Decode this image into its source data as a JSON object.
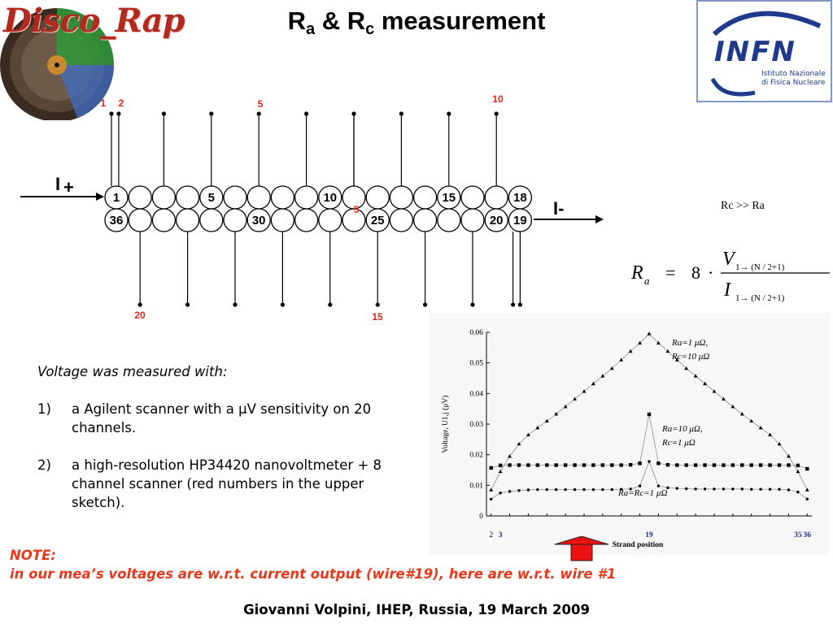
{
  "title": {
    "main": "R",
    "sub_a": "a",
    "amp": " & R",
    "sub_c": "c",
    "rest": " measurement"
  },
  "logos": {
    "disco_rap": "Disco_Rap",
    "infn": "INFN",
    "infn_line1": "Istituto Nazionale",
    "infn_line2": "di Fisica Nucleare"
  },
  "sketch": {
    "top_wire_labels": [
      "1",
      "2",
      "5",
      "10"
    ],
    "bottom_wire_labels": [
      "20",
      "15"
    ],
    "inner_wire_label": "5",
    "top_row_labels": [
      "1",
      "5",
      "10",
      "15",
      "18"
    ],
    "bottom_row_labels": [
      "36",
      "30",
      "25",
      "20",
      "19"
    ],
    "current_in": "I+",
    "current_in_sub": "+",
    "current_out": "I-"
  },
  "side_note": "Rc >> Ra",
  "formula": {
    "lhs": "R",
    "lhs_sub": "a",
    "equals": "=",
    "factor": "8",
    "dot": "·",
    "numerator": "V",
    "denominator": "I",
    "index": "1→ (N / 2+1)"
  },
  "body": {
    "intro": "Voltage was measured with:",
    "items": [
      {
        "num": "1)",
        "text": "a Agilent scanner with a μV sensitivity on 20 channels."
      },
      {
        "num": "2)",
        "text": "a high-resolution HP34420 nanovoltmeter + 8 channel scanner (red numbers in the upper sketch)."
      }
    ]
  },
  "note": {
    "label": "NOTE:",
    "text": "in our mea’s voltages are w.r.t. current output (wire#19), here are w.r.t. wire #1"
  },
  "footer": "Giovanni Volpini, IHEP, Russia, 19 March 2009",
  "chart_data": {
    "type": "line",
    "xlabel": "Strand position",
    "ylabel": "Voltage, U1,j (μV)",
    "ylim": [
      0,
      0.06
    ],
    "yticks": [
      "0",
      "0.01",
      "0.02",
      "0.03",
      "0.04",
      "0.05",
      "0.06"
    ],
    "xtick_labels": [
      "2",
      "3",
      "19",
      "35",
      "36"
    ],
    "x": [
      2,
      3,
      4,
      5,
      6,
      7,
      8,
      9,
      10,
      11,
      12,
      13,
      14,
      15,
      16,
      17,
      18,
      19,
      20,
      21,
      22,
      23,
      24,
      25,
      26,
      27,
      28,
      29,
      30,
      31,
      32,
      33,
      34,
      35,
      36
    ],
    "series": [
      {
        "name": "Ra=1 μΩ, Rc=10 μΩ",
        "marker": "triangle",
        "values": [
          0.0085,
          0.0145,
          0.0195,
          0.0235,
          0.0265,
          0.0288,
          0.031,
          0.0333,
          0.0357,
          0.0382,
          0.0407,
          0.0432,
          0.0457,
          0.0482,
          0.051,
          0.0538,
          0.0565,
          0.0595,
          0.0565,
          0.0538,
          0.051,
          0.0482,
          0.0457,
          0.0432,
          0.0407,
          0.0382,
          0.0357,
          0.0333,
          0.031,
          0.0288,
          0.0265,
          0.0235,
          0.0195,
          0.0145,
          0.0085
        ]
      },
      {
        "name": "Ra=10 μΩ, Rc=1 μΩ",
        "marker": "square",
        "values": [
          0.0157,
          0.0165,
          0.0166,
          0.0166,
          0.0166,
          0.0166,
          0.0166,
          0.0166,
          0.0166,
          0.0166,
          0.0166,
          0.0166,
          0.0166,
          0.0166,
          0.0166,
          0.0167,
          0.0172,
          0.0332,
          0.0172,
          0.0167,
          0.0166,
          0.0166,
          0.0166,
          0.0166,
          0.0166,
          0.0166,
          0.0166,
          0.0166,
          0.0166,
          0.0166,
          0.0166,
          0.0166,
          0.0166,
          0.0165,
          0.0154
        ]
      },
      {
        "name": "Ra=Rc=1 μΩ",
        "marker": "diamond",
        "values": [
          0.0055,
          0.0075,
          0.008,
          0.0083,
          0.0085,
          0.0086,
          0.0086,
          0.0086,
          0.0086,
          0.0086,
          0.0086,
          0.0086,
          0.0086,
          0.0086,
          0.0087,
          0.0088,
          0.0098,
          0.0178,
          0.0098,
          0.0092,
          0.009,
          0.0089,
          0.0088,
          0.0088,
          0.0088,
          0.0088,
          0.0088,
          0.0088,
          0.0087,
          0.0087,
          0.0087,
          0.0087,
          0.0085,
          0.0078,
          0.0055
        ]
      }
    ],
    "legend": [
      {
        "line1": "Ra=1 μΩ,",
        "line2": "Rc=10 μΩ"
      },
      {
        "line1": "Ra=10 μΩ,",
        "line2": "Rc=1 μΩ"
      },
      {
        "line1": "Ra=Rc=1 μΩ"
      }
    ],
    "grid": false
  },
  "colors": {
    "accent_red": "#e0261b",
    "note_orange": "#e8381c",
    "infn_blue": "#1d3b8a",
    "arrow_red": "#ee1111"
  }
}
